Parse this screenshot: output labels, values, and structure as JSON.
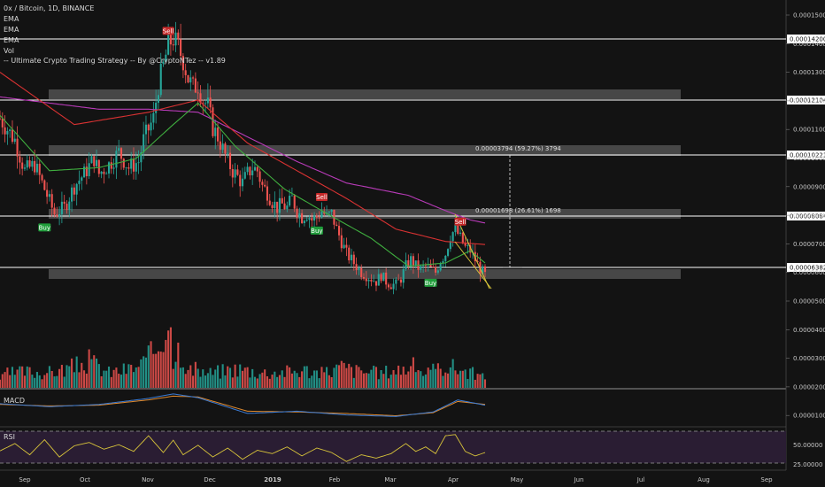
{
  "header": {
    "title": "0x / Bitcoin, 1D, BINANCE",
    "indicators": [
      "EMA",
      "EMA",
      "EMA",
      "Vol",
      "-- Ultimate Crypto Trading Strategy -- By @CryptoNTez -- v1.89"
    ]
  },
  "colors": {
    "background": "#131313",
    "up": "#26a69a",
    "down": "#ef5350",
    "ema_fast": "#3fae3f",
    "ema_mid": "#d93232",
    "ema_slow": "#b93bb9",
    "zone": "#5a5a5a",
    "level": "#ffffff",
    "wedge": "#d8c43a",
    "macd": "#3a7bd5",
    "signal": "#e08a2e",
    "rsi": "#d8c43a",
    "rsi_band": "#2a1d33"
  },
  "chart_data": {
    "type": "candlestick",
    "pair": "0x / Bitcoin",
    "timeframe": "1D",
    "exchange": "BINANCE",
    "x_ticks": [
      "Sep",
      "Oct",
      "Nov",
      "Dec",
      "2019",
      "Feb",
      "Mar",
      "Apr",
      "May",
      "Jun",
      "Jul",
      "Aug",
      "Sep"
    ],
    "y_ticks": [
      "0.00015000",
      "0.00014000",
      "0.00013000",
      "0.00012000",
      "0.00011000",
      "0.00010000",
      "0.00009000",
      "0.00008000",
      "0.00007000",
      "0.00006000",
      "0.00005000",
      "0.00004000",
      "0.00003000",
      "0.00002000",
      "0.00001000"
    ],
    "price_ylim": [
      5.85e-05,
      0.0001535
    ],
    "close_path": [
      [
        0,
        0.000115
      ],
      [
        6,
        0.000108
      ],
      [
        10,
        9.8e-05
      ],
      [
        14,
        0.0001
      ],
      [
        18,
        9.2e-05
      ],
      [
        22,
        8.4e-05
      ],
      [
        26,
        8.6e-05
      ],
      [
        30,
        9.3e-05
      ],
      [
        34,
        9.7e-05
      ],
      [
        38,
        0.000102
      ],
      [
        40,
        9.7e-05
      ],
      [
        44,
        0.0001
      ],
      [
        48,
        0.000104
      ],
      [
        52,
        9.9e-05
      ],
      [
        56,
        0.000101
      ],
      [
        58,
        0.000108
      ],
      [
        62,
        0.000115
      ],
      [
        64,
        0.000126
      ],
      [
        66,
        0.000132
      ],
      [
        68,
        0.000139
      ],
      [
        70,
        0.000141
      ],
      [
        72,
        0.000138
      ],
      [
        74,
        0.000134
      ],
      [
        76,
        0.000128
      ],
      [
        78,
        0.000125
      ],
      [
        80,
        0.000126
      ],
      [
        82,
        0.000121
      ],
      [
        84,
        0.000119
      ],
      [
        86,
        0.000112
      ],
      [
        88,
        0.000109
      ],
      [
        90,
        0.000105
      ],
      [
        92,
        0.000101
      ],
      [
        94,
        9.8e-05
      ],
      [
        96,
        9.6e-05
      ],
      [
        98,
        9.4e-05
      ],
      [
        100,
        9.7e-05
      ],
      [
        102,
        9.9e-05
      ],
      [
        104,
        9.8e-05
      ],
      [
        106,
        9.3e-05
      ],
      [
        108,
        9.1e-05
      ],
      [
        110,
        8.8e-05
      ],
      [
        112,
        8.6e-05
      ],
      [
        114,
        8.7e-05
      ],
      [
        116,
        8.6e-05
      ],
      [
        118,
        8.9e-05
      ],
      [
        120,
        8.5e-05
      ],
      [
        122,
        8.3e-05
      ],
      [
        124,
        8.4e-05
      ],
      [
        126,
        8.2e-05
      ],
      [
        128,
        8.3e-05
      ],
      [
        130,
        8.5e-05
      ],
      [
        132,
        8.3e-05
      ],
      [
        134,
        8.4e-05
      ],
      [
        136,
        7.9e-05
      ],
      [
        138,
        7.5e-05
      ],
      [
        140,
        7.1e-05
      ],
      [
        142,
        6.9e-05
      ],
      [
        144,
        6.7e-05
      ],
      [
        146,
        6.5e-05
      ],
      [
        148,
        6.4e-05
      ],
      [
        150,
        6.3e-05
      ],
      [
        152,
        6.2e-05
      ],
      [
        154,
        6.4e-05
      ],
      [
        156,
        6.2e-05
      ],
      [
        158,
        6.1e-05
      ],
      [
        160,
        6.1e-05
      ],
      [
        162,
        6.3e-05
      ],
      [
        164,
        6.7e-05
      ],
      [
        166,
        6.9e-05
      ],
      [
        168,
        6.7e-05
      ],
      [
        170,
        6.6e-05
      ],
      [
        172,
        6.7e-05
      ],
      [
        174,
        6.6e-05
      ],
      [
        176,
        6.5e-05
      ],
      [
        178,
        6.9e-05
      ],
      [
        180,
        7.1e-05
      ],
      [
        182,
        7.7e-05
      ],
      [
        184,
        7.9e-05
      ],
      [
        186,
        7.6e-05
      ],
      [
        188,
        7.3e-05
      ],
      [
        190,
        7.2e-05
      ],
      [
        192,
        6.9e-05
      ],
      [
        194,
        6.6e-05
      ],
      [
        196,
        6.4e-05
      ]
    ],
    "days_span": 380,
    "ema_fast": [
      [
        0,
        0.000116
      ],
      [
        20,
        9.8e-05
      ],
      [
        40,
        9.9e-05
      ],
      [
        55,
        0.000102
      ],
      [
        70,
        0.000113
      ],
      [
        80,
        0.00012
      ],
      [
        95,
        0.000106
      ],
      [
        115,
        9.2e-05
      ],
      [
        130,
        8.5e-05
      ],
      [
        150,
        7.6e-05
      ],
      [
        165,
        6.7e-05
      ],
      [
        180,
        6.8e-05
      ],
      [
        190,
        7.2e-05
      ],
      [
        196,
        6.8e-05
      ]
    ],
    "ema_mid": [
      [
        0,
        0.00013
      ],
      [
        30,
        0.000113
      ],
      [
        60,
        0.000117
      ],
      [
        80,
        0.000121
      ],
      [
        100,
        0.000107
      ],
      [
        120,
        9.8e-05
      ],
      [
        140,
        8.9e-05
      ],
      [
        160,
        7.9e-05
      ],
      [
        180,
        7.5e-05
      ],
      [
        196,
        7.4e-05
      ]
    ],
    "ema_slow": [
      [
        0,
        0.000122
      ],
      [
        40,
        0.000118
      ],
      [
        60,
        0.000118
      ],
      [
        80,
        0.000117
      ],
      [
        100,
        0.000109
      ],
      [
        120,
        0.000101
      ],
      [
        140,
        9.4e-05
      ],
      [
        165,
        9e-05
      ],
      [
        180,
        8.5e-05
      ],
      [
        190,
        8.2e-05
      ],
      [
        196,
        8.1e-05
      ]
    ],
    "volume": [
      [
        2,
        8.5e-06
      ],
      [
        10,
        1e-05
      ],
      [
        20,
        9.5e-06
      ],
      [
        30,
        1.3e-05
      ],
      [
        36,
        1.65e-05
      ],
      [
        44,
        9.5e-06
      ],
      [
        50,
        1.1e-05
      ],
      [
        56,
        1.3e-05
      ],
      [
        60,
        1.8e-05
      ],
      [
        64,
        2.8e-05
      ],
      [
        68,
        4.5e-05
      ],
      [
        70,
        2.2e-05
      ],
      [
        72,
        3.6e-05
      ],
      [
        74,
        1e-05
      ],
      [
        80,
        1.1e-05
      ],
      [
        84,
        9e-06
      ],
      [
        90,
        1.05e-05
      ],
      [
        96,
        1.2e-05
      ],
      [
        106,
        9.5e-06
      ],
      [
        116,
        1e-05
      ],
      [
        124,
        1.1e-05
      ],
      [
        130,
        9e-06
      ],
      [
        138,
        1.3e-05
      ],
      [
        144,
        1.05e-05
      ],
      [
        154,
        9e-06
      ],
      [
        158,
        1.1e-05
      ],
      [
        164,
        1.2e-05
      ],
      [
        168,
        1.35e-05
      ],
      [
        172,
        9e-06
      ],
      [
        176,
        1.05e-05
      ],
      [
        180,
        1.4e-05
      ],
      [
        184,
        1.25e-05
      ],
      [
        190,
        9.5e-06
      ],
      [
        196,
        6e-06
      ]
    ],
    "volume_ylim": [
      0,
      5.6e-05
    ],
    "macd": [
      [
        0,
        0.3
      ],
      [
        20,
        0.1
      ],
      [
        40,
        0.25
      ],
      [
        60,
        0.65
      ],
      [
        70,
        0.95
      ],
      [
        80,
        0.7
      ],
      [
        100,
        -0.35
      ],
      [
        120,
        -0.2
      ],
      [
        140,
        -0.45
      ],
      [
        160,
        -0.55
      ],
      [
        175,
        -0.25
      ],
      [
        185,
        0.55
      ],
      [
        196,
        0.2
      ]
    ],
    "macd_signal": [
      [
        0,
        0.25
      ],
      [
        20,
        0.15
      ],
      [
        40,
        0.2
      ],
      [
        60,
        0.55
      ],
      [
        70,
        0.8
      ],
      [
        80,
        0.75
      ],
      [
        100,
        -0.2
      ],
      [
        120,
        -0.25
      ],
      [
        140,
        -0.35
      ],
      [
        160,
        -0.5
      ],
      [
        175,
        -0.3
      ],
      [
        185,
        0.45
      ],
      [
        196,
        0.25
      ]
    ],
    "macd_ylim": [
      -1,
      1
    ],
    "rsi": [
      [
        0,
        45
      ],
      [
        6,
        58
      ],
      [
        12,
        38
      ],
      [
        18,
        65
      ],
      [
        24,
        34
      ],
      [
        30,
        54
      ],
      [
        36,
        60
      ],
      [
        42,
        48
      ],
      [
        48,
        56
      ],
      [
        54,
        44
      ],
      [
        60,
        72
      ],
      [
        66,
        42
      ],
      [
        70,
        64
      ],
      [
        74,
        38
      ],
      [
        80,
        55
      ],
      [
        86,
        34
      ],
      [
        92,
        50
      ],
      [
        98,
        30
      ],
      [
        104,
        46
      ],
      [
        110,
        40
      ],
      [
        116,
        52
      ],
      [
        122,
        36
      ],
      [
        128,
        50
      ],
      [
        134,
        42
      ],
      [
        140,
        26
      ],
      [
        146,
        38
      ],
      [
        152,
        32
      ],
      [
        158,
        40
      ],
      [
        164,
        58
      ],
      [
        168,
        44
      ],
      [
        172,
        52
      ],
      [
        176,
        40
      ],
      [
        180,
        72
      ],
      [
        184,
        74
      ],
      [
        188,
        44
      ],
      [
        192,
        36
      ],
      [
        196,
        42
      ]
    ],
    "rsi_ylim": [
      20,
      80
    ],
    "rsi_ticks": [
      "50.00000",
      "25.00000"
    ],
    "levels": [
      {
        "value": 0.000142,
        "label": "0.00014200"
      },
      {
        "value": 0.00012104,
        "label": "0.00012104"
      },
      {
        "value": 0.00010221,
        "label": "0.00010221"
      },
      {
        "value": 8.084e-05,
        "label": "0.00008084"
      },
      {
        "value": 6.382e-05,
        "label": "0.00006382"
      }
    ],
    "zones": [
      {
        "from": 0.000121,
        "to": 0.0001228
      },
      {
        "from": 0.000102,
        "to": 0.0001037
      },
      {
        "from": 8.06e-05,
        "to": 8.22e-05
      },
      {
        "from": 6.2e-05,
        "to": 6.36e-05
      }
    ],
    "measurements": [
      {
        "text": "0.00003794 (59.27%) 3794"
      },
      {
        "text": "0.00001698 (26.61%) 1698"
      }
    ],
    "signals": [
      {
        "type": "Sell",
        "x": 68,
        "value": 0.000141
      },
      {
        "type": "Buy",
        "x": 18,
        "value": 8.2e-05
      },
      {
        "type": "Buy",
        "x": 128,
        "value": 8.1e-05
      },
      {
        "type": "Sell",
        "x": 130,
        "value": 8.7e-05
      },
      {
        "type": "Buy",
        "x": 174,
        "value": 6.4e-05
      },
      {
        "type": "Sell",
        "x": 186,
        "value": 7.9e-05
      }
    ]
  }
}
